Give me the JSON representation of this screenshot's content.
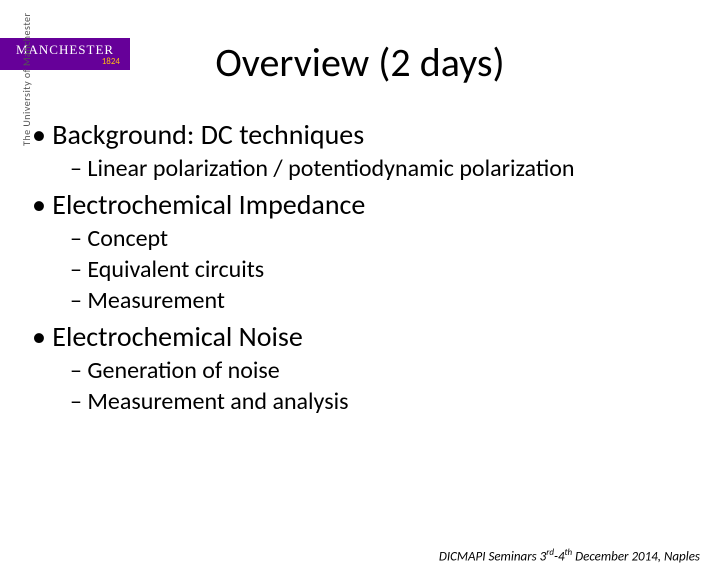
{
  "logo": {
    "name": "MANCHESTER",
    "year": "1824",
    "sidebar": "The University of Manchester",
    "bg_color": "#660099",
    "text_color": "#ffffff",
    "year_color": "#FDB913"
  },
  "title": "Overview (2 days)",
  "bullets": [
    {
      "text": "Background: DC techniques",
      "subs": [
        "Linear polarization / potentiodynamic polarization"
      ]
    },
    {
      "text": "Electrochemical Impedance",
      "subs": [
        "Concept",
        "Equivalent circuits",
        "Measurement"
      ]
    },
    {
      "text": "Electrochemical Noise",
      "subs": [
        "Generation of noise",
        "Measurement and analysis"
      ]
    }
  ],
  "footer": {
    "prefix": "DICMAPI Seminars 3",
    "sup1": "rd",
    "mid": "-4",
    "sup2": "th",
    "suffix": " December 2014, Naples"
  },
  "styling": {
    "title_fontsize": 40,
    "bullet_l1_fontsize": 28,
    "bullet_l2_fontsize": 24,
    "footer_fontsize": 13,
    "background_color": "#ffffff",
    "text_color": "#000000",
    "font_family": "Calibri"
  }
}
